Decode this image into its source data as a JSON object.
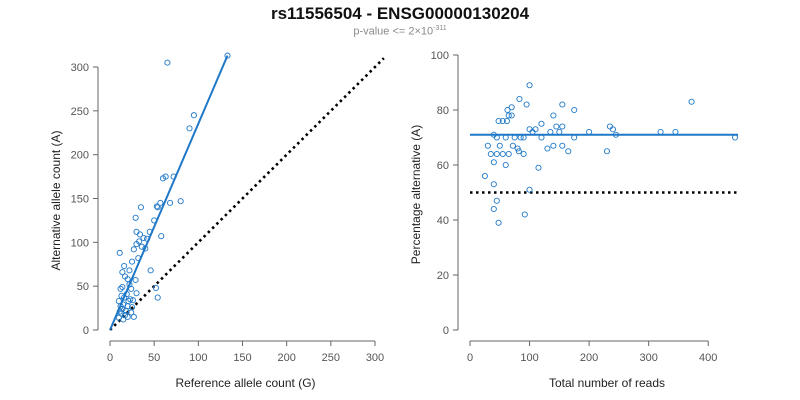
{
  "figure": {
    "title": "rs11556504 - ENSG00000130204",
    "subtitle_prefix": "p-value <= 2×10",
    "subtitle_exponent": "-311"
  },
  "colors": {
    "points": "#1f78c8",
    "fit_line": "#1f78c8",
    "reference_line": "#000000",
    "axis": "#666666",
    "text": "#222222"
  },
  "chart_data": [
    {
      "type": "scatter",
      "xlabel": "Reference allele count (G)",
      "ylabel": "Alternative allele count (A)",
      "xlim": [
        0,
        300
      ],
      "ylim": [
        0,
        300
      ],
      "xticks": [
        0,
        50,
        100,
        150,
        200,
        250,
        300
      ],
      "yticks": [
        0,
        50,
        100,
        150,
        200,
        250,
        300
      ],
      "fit_line": [
        [
          0,
          0
        ],
        [
          133,
          313
        ]
      ],
      "reference_line": [
        [
          0,
          0
        ],
        [
          310,
          310
        ]
      ],
      "points": [
        [
          133,
          313
        ],
        [
          65,
          305
        ],
        [
          95,
          245
        ],
        [
          90,
          230
        ],
        [
          63,
          175
        ],
        [
          60,
          173
        ],
        [
          72,
          175
        ],
        [
          57,
          145
        ],
        [
          68,
          145
        ],
        [
          80,
          147
        ],
        [
          53,
          141
        ],
        [
          54,
          140
        ],
        [
          35,
          140
        ],
        [
          50,
          125
        ],
        [
          29,
          128
        ],
        [
          45,
          112
        ],
        [
          30,
          112
        ],
        [
          58,
          107
        ],
        [
          34,
          109
        ],
        [
          38,
          105
        ],
        [
          42,
          104
        ],
        [
          33,
          101
        ],
        [
          30,
          98
        ],
        [
          36,
          95
        ],
        [
          40,
          93
        ],
        [
          27,
          92
        ],
        [
          11,
          88
        ],
        [
          32,
          82
        ],
        [
          25,
          78
        ],
        [
          16,
          73
        ],
        [
          14,
          66
        ],
        [
          22,
          68
        ],
        [
          46,
          68
        ],
        [
          17,
          61
        ],
        [
          20,
          58
        ],
        [
          29,
          57
        ],
        [
          22,
          52
        ],
        [
          14,
          49
        ],
        [
          12,
          47
        ],
        [
          24,
          47
        ],
        [
          52,
          48
        ],
        [
          30,
          42
        ],
        [
          19,
          41
        ],
        [
          13,
          39
        ],
        [
          16,
          37
        ],
        [
          23,
          35
        ],
        [
          10,
          33
        ],
        [
          21,
          33
        ],
        [
          26,
          34
        ],
        [
          54,
          37
        ],
        [
          15,
          29
        ],
        [
          12,
          27
        ],
        [
          20,
          27
        ],
        [
          25,
          26
        ],
        [
          14,
          24
        ],
        [
          18,
          22
        ],
        [
          11,
          21
        ],
        [
          13,
          19
        ],
        [
          24,
          20
        ],
        [
          17,
          17
        ],
        [
          20,
          15
        ],
        [
          27,
          15
        ],
        [
          10,
          14
        ],
        [
          15,
          12
        ]
      ]
    },
    {
      "type": "scatter",
      "xlabel": "Total number of reads",
      "ylabel": "Percentage alternative (A)",
      "xlim": [
        0,
        450
      ],
      "ylim": [
        0,
        100
      ],
      "xticks": [
        0,
        100,
        200,
        300,
        400
      ],
      "yticks": [
        0,
        20,
        40,
        60,
        80,
        100
      ],
      "fit_line": [
        [
          0,
          71
        ],
        [
          450,
          71
        ]
      ],
      "reference_line": [
        [
          0,
          50
        ],
        [
          450,
          50
        ]
      ],
      "points": [
        [
          100,
          89
        ],
        [
          83,
          84
        ],
        [
          95,
          82
        ],
        [
          70,
          81
        ],
        [
          155,
          82
        ],
        [
          175,
          80
        ],
        [
          63,
          80
        ],
        [
          65,
          78
        ],
        [
          70,
          78
        ],
        [
          55,
          76
        ],
        [
          62,
          76
        ],
        [
          48,
          76
        ],
        [
          140,
          78
        ],
        [
          120,
          75
        ],
        [
          145,
          74
        ],
        [
          155,
          74
        ],
        [
          110,
          73
        ],
        [
          100,
          73
        ],
        [
          105,
          72
        ],
        [
          135,
          72
        ],
        [
          150,
          72
        ],
        [
          200,
          72
        ],
        [
          235,
          74
        ],
        [
          240,
          73
        ],
        [
          320,
          72
        ],
        [
          345,
          72
        ],
        [
          372,
          83
        ],
        [
          445,
          70
        ],
        [
          40,
          71
        ],
        [
          45,
          70
        ],
        [
          60,
          70
        ],
        [
          75,
          70
        ],
        [
          85,
          70
        ],
        [
          90,
          70
        ],
        [
          175,
          70
        ],
        [
          245,
          71
        ],
        [
          30,
          67
        ],
        [
          50,
          67
        ],
        [
          72,
          67
        ],
        [
          80,
          66
        ],
        [
          45,
          64
        ],
        [
          140,
          67
        ],
        [
          155,
          67
        ],
        [
          35,
          64
        ],
        [
          55,
          64
        ],
        [
          65,
          64
        ],
        [
          90,
          64
        ],
        [
          130,
          66
        ],
        [
          165,
          65
        ],
        [
          230,
          65
        ],
        [
          40,
          61
        ],
        [
          60,
          60
        ],
        [
          25,
          56
        ],
        [
          40,
          53
        ],
        [
          100,
          51
        ],
        [
          45,
          47
        ],
        [
          40,
          44
        ],
        [
          48,
          39
        ],
        [
          92,
          42
        ],
        [
          82,
          65
        ],
        [
          120,
          70
        ],
        [
          115,
          59
        ]
      ]
    }
  ]
}
